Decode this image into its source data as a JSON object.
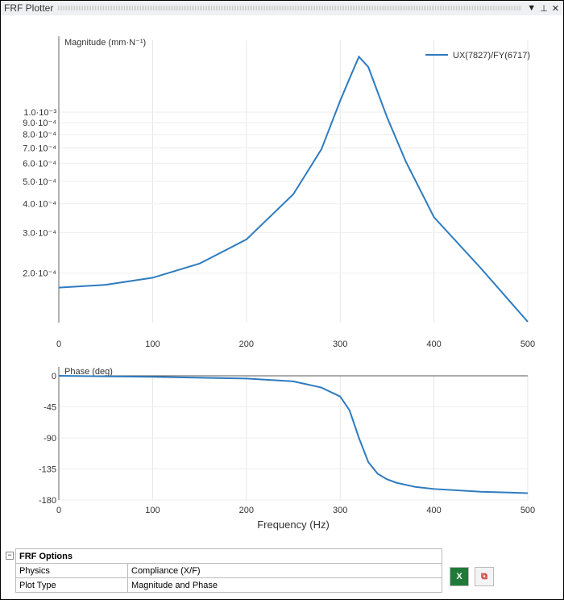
{
  "window": {
    "title": "FRF Plotter"
  },
  "chart_data": [
    {
      "type": "line",
      "title": "",
      "ylabel": "Magnitude (mm·N⁻¹)",
      "yscale": "log",
      "ylim": [
        0.000122,
        0.00205
      ],
      "xlim": [
        0,
        500
      ],
      "xticks": [
        "0",
        "100",
        "200",
        "300",
        "400",
        "500"
      ],
      "yticks": [
        {
          "v": 0.001,
          "label": "1.0·10⁻³"
        },
        {
          "v": 0.0009,
          "label": "9.0·10⁻⁴"
        },
        {
          "v": 0.0008,
          "label": "8.0·10⁻⁴"
        },
        {
          "v": 0.0007,
          "label": "7.0·10⁻⁴"
        },
        {
          "v": 0.0006,
          "label": "6.0·10⁻⁴"
        },
        {
          "v": 0.0005,
          "label": "5.0·10⁻⁴"
        },
        {
          "v": 0.0004,
          "label": "4.0·10⁻⁴"
        },
        {
          "v": 0.0003,
          "label": "3.0·10⁻⁴"
        },
        {
          "v": 0.0002,
          "label": "2.0·10⁻⁴"
        }
      ],
      "legend": "top-right",
      "series": [
        {
          "name": "UX(7827)/FY(6717)",
          "color": "#2e7bbf",
          "x": [
            0,
            50,
            100,
            150,
            200,
            250,
            280,
            300,
            310,
            320,
            330,
            350,
            370,
            400,
            450,
            500
          ],
          "y": [
            0.000173,
            0.000178,
            0.000191,
            0.00022,
            0.00028,
            0.00044,
            0.00069,
            0.00112,
            0.0014,
            0.00174,
            0.00157,
            0.00095,
            0.00061,
            0.00035,
            0.00021,
            0.000123
          ]
        }
      ]
    },
    {
      "type": "line",
      "ylabel": "Phase (deg)",
      "xlabel": "Frequency (Hz)",
      "ylim": [
        -180,
        0
      ],
      "xlim": [
        0,
        500
      ],
      "xticks": [
        "0",
        "100",
        "200",
        "300",
        "400",
        "500"
      ],
      "yticks": [
        "0",
        "-45",
        "-90",
        "-135",
        "-180"
      ],
      "series": [
        {
          "name": "UX(7827)/FY(6717)",
          "color": "#2e7bbf",
          "x": [
            0,
            100,
            200,
            250,
            280,
            300,
            310,
            320,
            330,
            340,
            350,
            360,
            380,
            400,
            450,
            500
          ],
          "y": [
            0,
            -1.5,
            -4,
            -8,
            -17,
            -30,
            -50,
            -90,
            -125,
            -142,
            -150,
            -155,
            -161,
            -164,
            -168,
            -170
          ]
        }
      ]
    }
  ],
  "options": {
    "header": "FRF Options",
    "rows": [
      [
        "Physics",
        "Compliance (X/F)"
      ],
      [
        "Plot Type",
        "Magnitude and Phase"
      ]
    ]
  },
  "buttons": {
    "excel": "X",
    "copy": "⧉"
  }
}
